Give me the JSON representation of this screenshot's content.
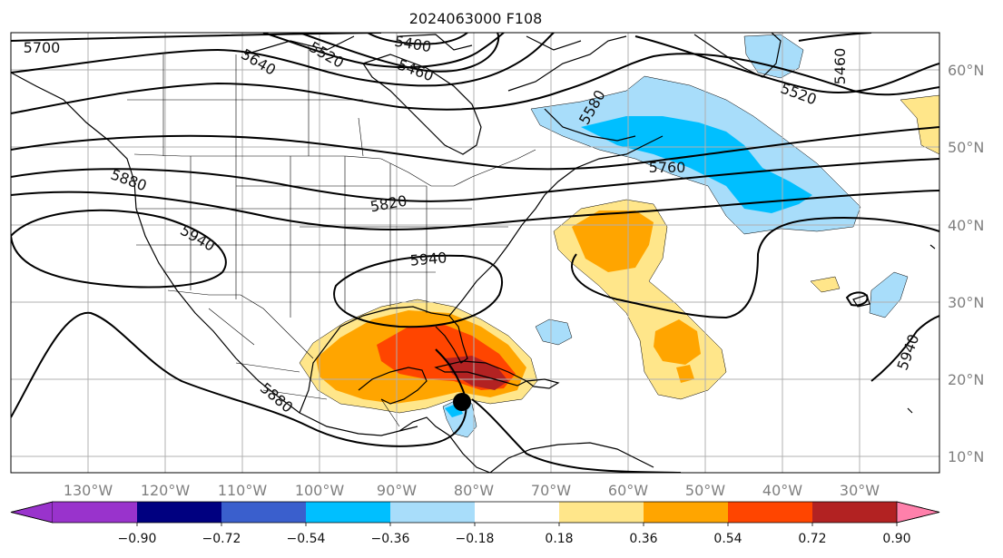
{
  "title": "2024063000 F108",
  "lon_labels": [
    "130°W",
    "120°W",
    "110°W",
    "100°W",
    "90°W",
    "80°W",
    "70°W",
    "60°W",
    "50°W",
    "40°W",
    "30°W"
  ],
  "lat_labels": [
    "60°N",
    "50°N",
    "40°N",
    "30°N",
    "20°N",
    "10°N"
  ],
  "contour_labels": [
    "5700",
    "5640",
    "5520",
    "5400",
    "5460",
    "5580",
    "5520",
    "5460",
    "5880",
    "5820",
    "5760",
    "5940",
    "5940",
    "5880",
    "5940"
  ],
  "colorbar": {
    "ticks": [
      "−0.90",
      "−0.72",
      "−0.54",
      "−0.36",
      "−0.18",
      "0.18",
      "0.36",
      "0.54",
      "0.72",
      "0.90"
    ],
    "colors": {
      "under": "#9933cc",
      "bins": [
        "#9933cc",
        "#000080",
        "#3a5fcd",
        "#00bfff",
        "#a8ddfa",
        "#ffffff",
        "#ffe68a",
        "#ffa500",
        "#ff4500",
        "#b22222"
      ],
      "over": "#ff80ab"
    }
  },
  "storm_marker": {
    "lon": -81.3,
    "lat": 17.2,
    "color": "#000000"
  }
}
